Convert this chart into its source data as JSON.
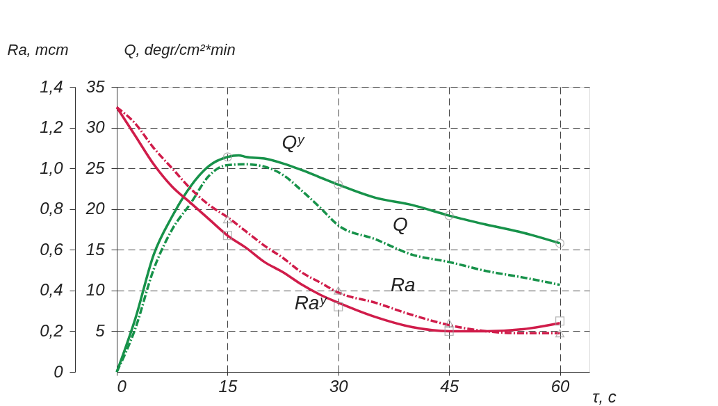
{
  "chart_data": {
    "type": "line",
    "xlabel": "τ, c",
    "ylabel": "Q, degr/cm²*min",
    "y2label": "Ra, mcm",
    "xlim": [
      0,
      64
    ],
    "xticks": [
      0,
      15,
      30,
      45,
      60
    ],
    "ylim": [
      0,
      35
    ],
    "yticks": [
      5,
      10,
      15,
      20,
      25,
      30,
      35
    ],
    "y2lim": [
      0,
      1.4
    ],
    "y2ticks": [
      0,
      {
        "value": 0.2,
        "label": "0,2"
      },
      {
        "value": 0.4,
        "label": "0,4"
      },
      {
        "value": 0.6,
        "label": "0,6"
      },
      {
        "value": 0.8,
        "label": "0,8"
      },
      {
        "value": 1.0,
        "label": "1,0"
      },
      {
        "value": 1.2,
        "label": "1,2"
      },
      {
        "value": 1.4,
        "label": "1,4"
      }
    ],
    "grid": true,
    "series": [
      {
        "name": "Qʸ",
        "color": "#17924a",
        "line_style": "solid",
        "marker": "none",
        "x": [
          0,
          2.5,
          5,
          7.5,
          10,
          12.5,
          15,
          16.5,
          17.5,
          20,
          22.5,
          25,
          27.5,
          30,
          35,
          40,
          45,
          50,
          55,
          60
        ],
        "values": [
          0,
          6.5,
          14.4,
          19.1,
          22.8,
          25.3,
          26.4,
          26.6,
          26.4,
          26.2,
          25.6,
          24.8,
          23.9,
          23.0,
          21.4,
          20.5,
          19.2,
          18.1,
          17.1,
          15.8
        ]
      },
      {
        "name": "Q",
        "color": "#17924a",
        "line_style": "dashed",
        "marker": "none",
        "x": [
          0,
          2.5,
          5,
          7.5,
          10,
          12.5,
          15,
          17.5,
          20,
          22.5,
          25,
          27.5,
          30,
          35,
          40,
          45,
          50,
          55,
          60
        ],
        "values": [
          0,
          5.3,
          12.6,
          17.5,
          20.7,
          24.1,
          25.4,
          25.5,
          25.2,
          24.2,
          22.3,
          20.2,
          18.0,
          16.3,
          14.4,
          13.5,
          12.4,
          11.6,
          10.7
        ]
      },
      {
        "name": "Raʸ",
        "color": "#d01c4a",
        "line_style": "solid",
        "marker": "none",
        "axis": "y2",
        "x": [
          0,
          2.5,
          5,
          7.5,
          10,
          12.5,
          15,
          17.5,
          20,
          22.5,
          25,
          27.5,
          30,
          35,
          40,
          45,
          50,
          55,
          60
        ],
        "values": [
          1.3,
          1.16,
          1.02,
          0.91,
          0.83,
          0.75,
          0.67,
          0.61,
          0.54,
          0.49,
          0.43,
          0.38,
          0.34,
          0.27,
          0.22,
          0.2,
          0.2,
          0.21,
          0.24
        ]
      },
      {
        "name": "Ra",
        "color": "#d01c4a",
        "line_style": "dashed",
        "marker": "none",
        "axis": "y2",
        "x": [
          0,
          2.5,
          5,
          7.5,
          10,
          12.5,
          15,
          17.5,
          20,
          22.5,
          25,
          27.5,
          30,
          35,
          40,
          45,
          50,
          55,
          60
        ],
        "values": [
          1.3,
          1.22,
          1.1,
          1.0,
          0.9,
          0.82,
          0.76,
          0.69,
          0.62,
          0.56,
          0.49,
          0.44,
          0.39,
          0.34,
          0.28,
          0.23,
          0.2,
          0.19,
          0.19
        ]
      },
      {
        "type": "scatter",
        "color": "#999999",
        "marker": "circle",
        "x": [
          15,
          30,
          45,
          60
        ],
        "values": [
          26.4,
          23.0,
          19.2,
          15.8
        ]
      },
      {
        "type": "scatter",
        "color": "#999999",
        "marker": "triangle",
        "axis": "y2",
        "x": [
          15,
          30,
          45,
          60
        ],
        "values": [
          0.75,
          0.4,
          0.24,
          0.19
        ]
      },
      {
        "type": "scatter",
        "color": "#999999",
        "marker": "square",
        "axis": "y2",
        "x": [
          15,
          30,
          45,
          60
        ],
        "values": [
          0.67,
          0.32,
          0.2,
          0.25
        ]
      }
    ]
  }
}
